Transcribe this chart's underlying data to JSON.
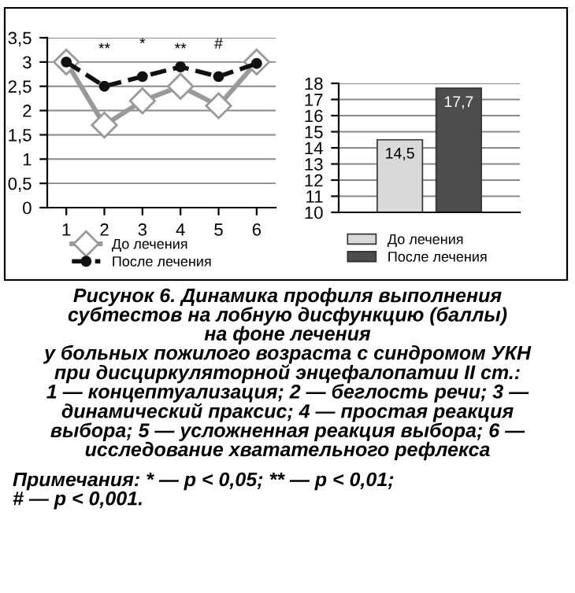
{
  "chart_data": [
    {
      "type": "line",
      "categories": [
        "1",
        "2",
        "3",
        "4",
        "5",
        "6"
      ],
      "ylim": [
        0,
        3.5
      ],
      "yticks": [
        0,
        {
          "value": 0.5,
          "label": "0,5"
        },
        1,
        {
          "value": 1.5,
          "label": "1,5"
        },
        2,
        {
          "value": 2.5,
          "label": "2,5"
        },
        3,
        {
          "value": 3.5,
          "label": "3,5"
        }
      ],
      "grid": "y",
      "legend": "bottom",
      "series": [
        {
          "name": "До лечения",
          "color": "#999999",
          "marker": "diamond",
          "line_style": "solid",
          "values": [
            3.0,
            1.7,
            2.2,
            2.5,
            2.1,
            3.0
          ]
        },
        {
          "name": "После лечения",
          "color": "#111111",
          "marker": "circle",
          "line_style": "dashed",
          "values": [
            3.0,
            2.5,
            2.7,
            2.9,
            2.7,
            2.97
          ]
        }
      ],
      "annotations": [
        "**",
        "*",
        "**",
        "#",
        "Рисунок 6. Динамика профиля выполнения\nсубтестов на лобную дисфункцию (баллы)\nна фоне лечения\nу больных пожилого возраста с синдромом УКН\nпри дисциркуляторной энцефалопатии II ст.:\n1 — концептуализация; 2 — беглость речи; 3 —\nдинамический праксис; 4 — простая реакция\nвыбора; 5 — усложненная реакция выбора; 6 —\nисследование хватательного рефлекса",
        "Примечания: * — p < 0,05; ** — p < 0,01;\n# — p < 0,001."
      ]
    },
    {
      "type": "bar",
      "categories": [
        null
      ],
      "ylim": [
        10,
        18
      ],
      "yticks": [
        10,
        11,
        12,
        13,
        14,
        15,
        16,
        17,
        18
      ],
      "grid": "y",
      "legend": "bottom",
      "series": [
        {
          "name": "До лечения",
          "color": "#d9d9d9",
          "values": [
            14.5
          ],
          "value_labels": [
            "14,5"
          ]
        },
        {
          "name": "После лечения",
          "color": "#4d4d4d",
          "values": [
            17.7
          ],
          "value_labels": [
            "17,7"
          ]
        }
      ]
    }
  ]
}
